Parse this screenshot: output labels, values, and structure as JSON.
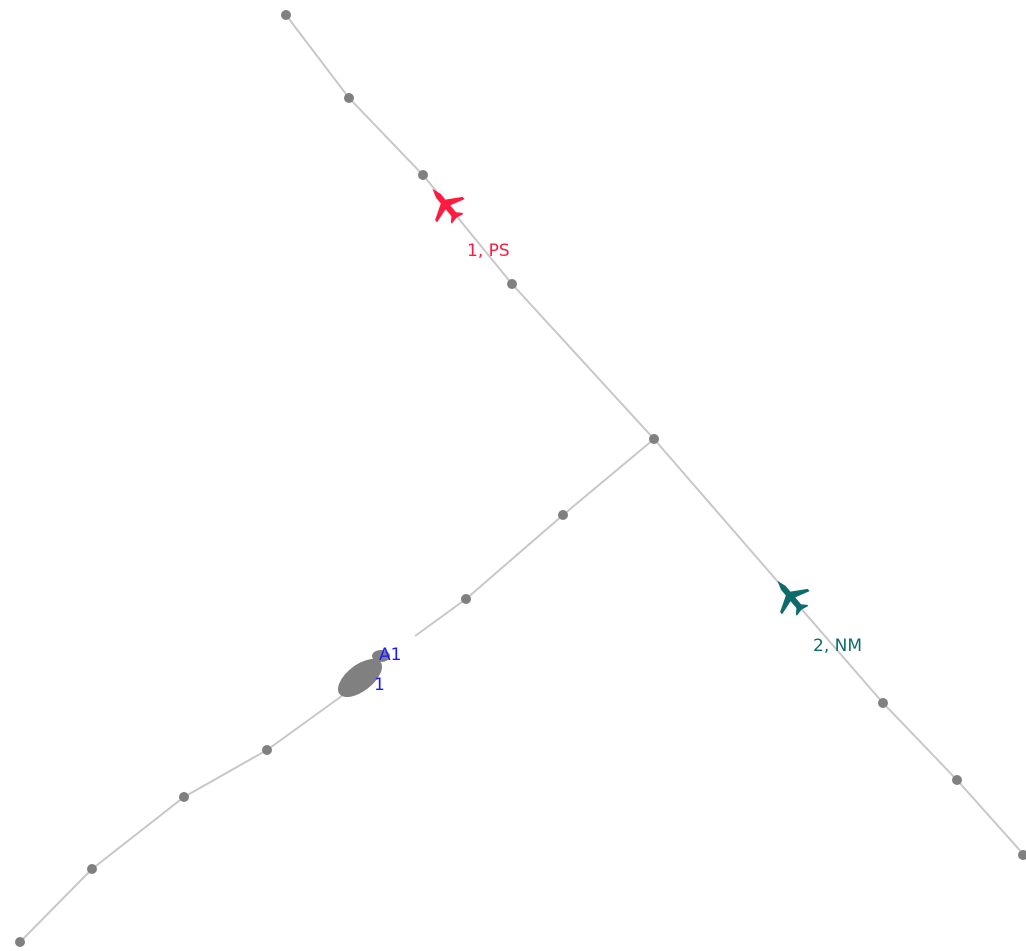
{
  "aircraft": [
    {
      "label": "1, PS"
    },
    {
      "label": "2, NM"
    }
  ],
  "cluster": {
    "labels": [
      "A1",
      "1"
    ]
  }
}
